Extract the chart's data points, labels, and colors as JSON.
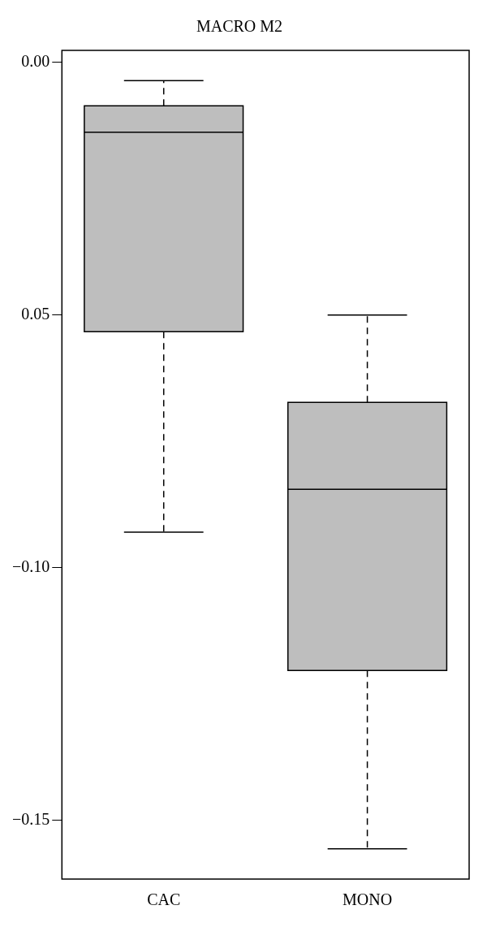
{
  "chart_data": {
    "type": "box",
    "title": "MACRO M2",
    "categories": [
      "CAC",
      "MONO"
    ],
    "boxes": [
      {
        "low": -0.093,
        "q1": -0.0533,
        "median": -0.0138,
        "q3": -0.0086,
        "high": -0.0036
      },
      {
        "low": -0.1557,
        "q1": -0.1204,
        "median": -0.0845,
        "q3": -0.0673,
        "high": -0.05
      }
    ],
    "color": "#bebebe",
    "ylim": [
      -0.1617,
      0.0024
    ],
    "yticks": [
      {
        "value": 0,
        "label": "0.00"
      },
      {
        "value": -0.05,
        "label": "0.05"
      },
      {
        "value": -0.1,
        "label": "−0.10"
      },
      {
        "value": -0.15,
        "label": "−0.15"
      }
    ],
    "grid": false
  }
}
